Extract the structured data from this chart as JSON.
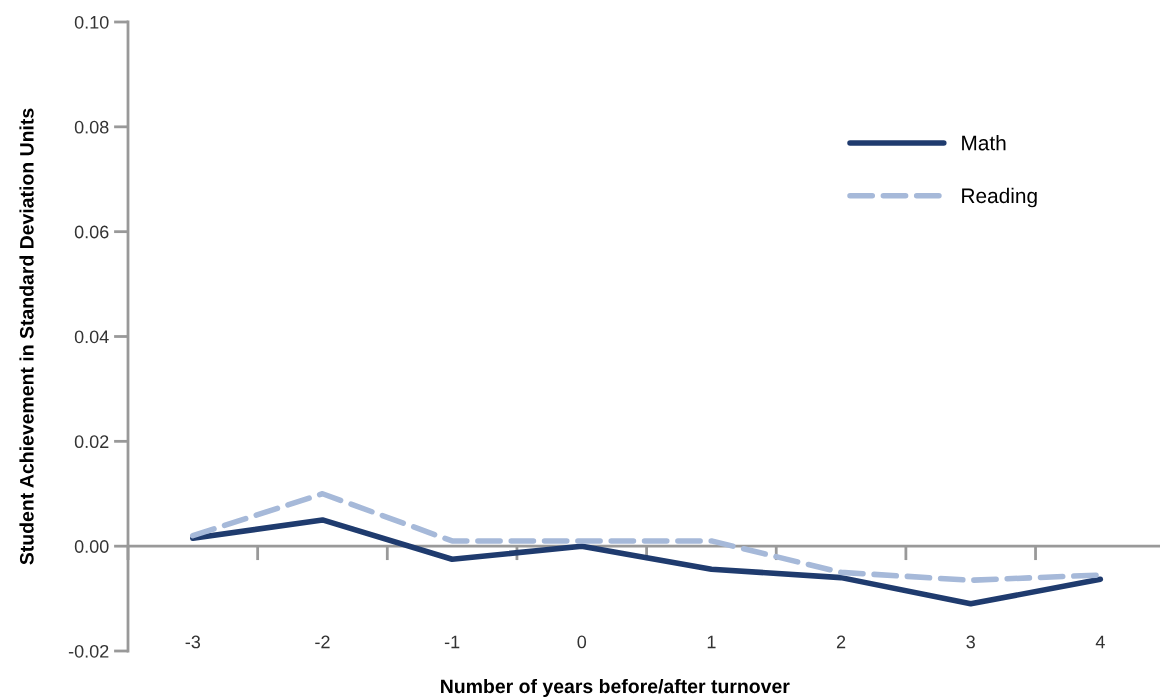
{
  "chart_data": {
    "type": "line",
    "xlabel": "Number of years before/after turnover",
    "ylabel": "Student Achievement in Standard Deviation Units",
    "categories": [
      "-3",
      "-2",
      "-1",
      "0",
      "1",
      "2",
      "3",
      "4"
    ],
    "series": [
      {
        "name": "Math",
        "color": "#1f3b6e",
        "line_style": "solid",
        "values": [
          0.0015,
          0.005,
          -0.0025,
          0.0,
          -0.0044,
          -0.006,
          -0.011,
          -0.0063
        ]
      },
      {
        "name": "Reading",
        "color": "#a6b9d9",
        "line_style": "dashed",
        "values": [
          0.002,
          0.01,
          0.001,
          0.001,
          0.001,
          -0.005,
          -0.0065,
          -0.0055
        ]
      }
    ],
    "ylim": [
      -0.02,
      0.1
    ],
    "yticks": [
      {
        "value": -0.02,
        "label": "-0.02"
      },
      {
        "value": 0.0,
        "label": "0.00"
      },
      {
        "value": 0.02,
        "label": "0.02"
      },
      {
        "value": 0.04,
        "label": "0.04"
      },
      {
        "value": 0.06,
        "label": "0.06"
      },
      {
        "value": 0.08,
        "label": "0.08"
      },
      {
        "value": 0.1,
        "label": "0.10"
      }
    ],
    "ref_lines": [
      {
        "axis": "y",
        "value": 0,
        "color": "#999999"
      }
    ],
    "grid": false,
    "legend": "top right",
    "marker": "none"
  }
}
